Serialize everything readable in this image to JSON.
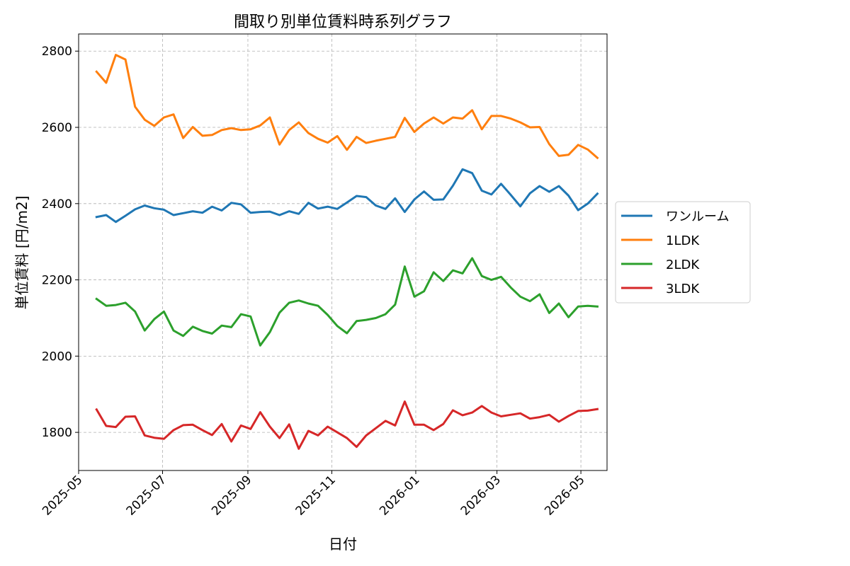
{
  "chart_data": {
    "type": "line",
    "title": "間取り別単位賃料時系列グラフ",
    "xlabel": "日付",
    "ylabel": "単位賃料 [円/m2]",
    "x_range": [
      "2025-05-01",
      "2026-05-20"
    ],
    "ylim": [
      1700,
      2845
    ],
    "yticks": [
      1800,
      2000,
      2200,
      2400,
      2600,
      2800
    ],
    "xticks": [
      "2025-05",
      "2025-07",
      "2025-09",
      "2025-11",
      "2026-01",
      "2026-03",
      "2026-05"
    ],
    "grid": true,
    "legend_position": "outside-right",
    "x": [
      "2025-05-14",
      "2025-05-21",
      "2025-05-28",
      "2025-06-04",
      "2025-06-11",
      "2025-06-18",
      "2025-06-25",
      "2025-07-02",
      "2025-07-09",
      "2025-07-16",
      "2025-07-23",
      "2025-07-30",
      "2025-08-06",
      "2025-08-13",
      "2025-08-20",
      "2025-08-27",
      "2025-09-03",
      "2025-09-10",
      "2025-09-17",
      "2025-09-24",
      "2025-10-01",
      "2025-10-08",
      "2025-10-15",
      "2025-10-22",
      "2025-10-29",
      "2025-11-05",
      "2025-11-12",
      "2025-11-19",
      "2025-11-26",
      "2025-12-03",
      "2025-12-10",
      "2025-12-17",
      "2025-12-24",
      "2025-12-31",
      "2026-01-07",
      "2026-01-14",
      "2026-01-21",
      "2026-01-28",
      "2026-02-04",
      "2026-02-11",
      "2026-02-18",
      "2026-02-25",
      "2026-03-04",
      "2026-03-11",
      "2026-03-18",
      "2026-03-25",
      "2026-04-01",
      "2026-04-08",
      "2026-04-15",
      "2026-04-22",
      "2026-04-29",
      "2026-05-06",
      "2026-05-13"
    ],
    "series": [
      {
        "name": "ワンルーム",
        "color": "#1f77b4",
        "values": [
          2365,
          2370,
          2352,
          2368,
          2385,
          2395,
          2388,
          2384,
          2370,
          2375,
          2380,
          2376,
          2392,
          2382,
          2402,
          2398,
          2376,
          2378,
          2379,
          2370,
          2380,
          2373,
          2402,
          2387,
          2392,
          2386,
          2403,
          2420,
          2417,
          2395,
          2386,
          2414,
          2378,
          2411,
          2432,
          2410,
          2411,
          2447,
          2490,
          2480,
          2434,
          2424,
          2452,
          2423,
          2393,
          2427,
          2446,
          2431,
          2446,
          2421,
          2383,
          2400,
          2426
        ]
      },
      {
        "name": "1LDK",
        "color": "#ff7f0e",
        "values": [
          2746,
          2717,
          2790,
          2778,
          2654,
          2620,
          2604,
          2626,
          2634,
          2572,
          2601,
          2578,
          2580,
          2593,
          2598,
          2593,
          2595,
          2605,
          2626,
          2555,
          2593,
          2613,
          2585,
          2570,
          2560,
          2577,
          2541,
          2575,
          2559,
          2565,
          2570,
          2575,
          2625,
          2588,
          2610,
          2626,
          2610,
          2626,
          2623,
          2645,
          2595,
          2630,
          2630,
          2623,
          2613,
          2600,
          2601,
          2556,
          2525,
          2528,
          2554,
          2542,
          2520
        ]
      },
      {
        "name": "2LDK",
        "color": "#2ca02c",
        "values": [
          2150,
          2132,
          2134,
          2140,
          2117,
          2067,
          2097,
          2117,
          2067,
          2053,
          2077,
          2066,
          2059,
          2080,
          2076,
          2110,
          2104,
          2028,
          2063,
          2114,
          2140,
          2146,
          2138,
          2132,
          2108,
          2079,
          2060,
          2092,
          2095,
          2100,
          2110,
          2135,
          2235,
          2156,
          2170,
          2220,
          2197,
          2225,
          2217,
          2257,
          2210,
          2200,
          2208,
          2180,
          2156,
          2144,
          2162,
          2113,
          2138,
          2102,
          2130,
          2132,
          2130
        ]
      },
      {
        "name": "3LDK",
        "color": "#d62728",
        "values": [
          1860,
          1817,
          1814,
          1841,
          1842,
          1792,
          1786,
          1783,
          1806,
          1819,
          1820,
          1806,
          1793,
          1822,
          1776,
          1818,
          1809,
          1853,
          1815,
          1785,
          1821,
          1757,
          1804,
          1792,
          1815,
          1800,
          1785,
          1762,
          1792,
          1811,
          1830,
          1818,
          1881,
          1820,
          1820,
          1806,
          1822,
          1858,
          1845,
          1852,
          1869,
          1852,
          1842,
          1846,
          1850,
          1836,
          1840,
          1846,
          1828,
          1843,
          1856,
          1857,
          1861
        ]
      }
    ]
  }
}
